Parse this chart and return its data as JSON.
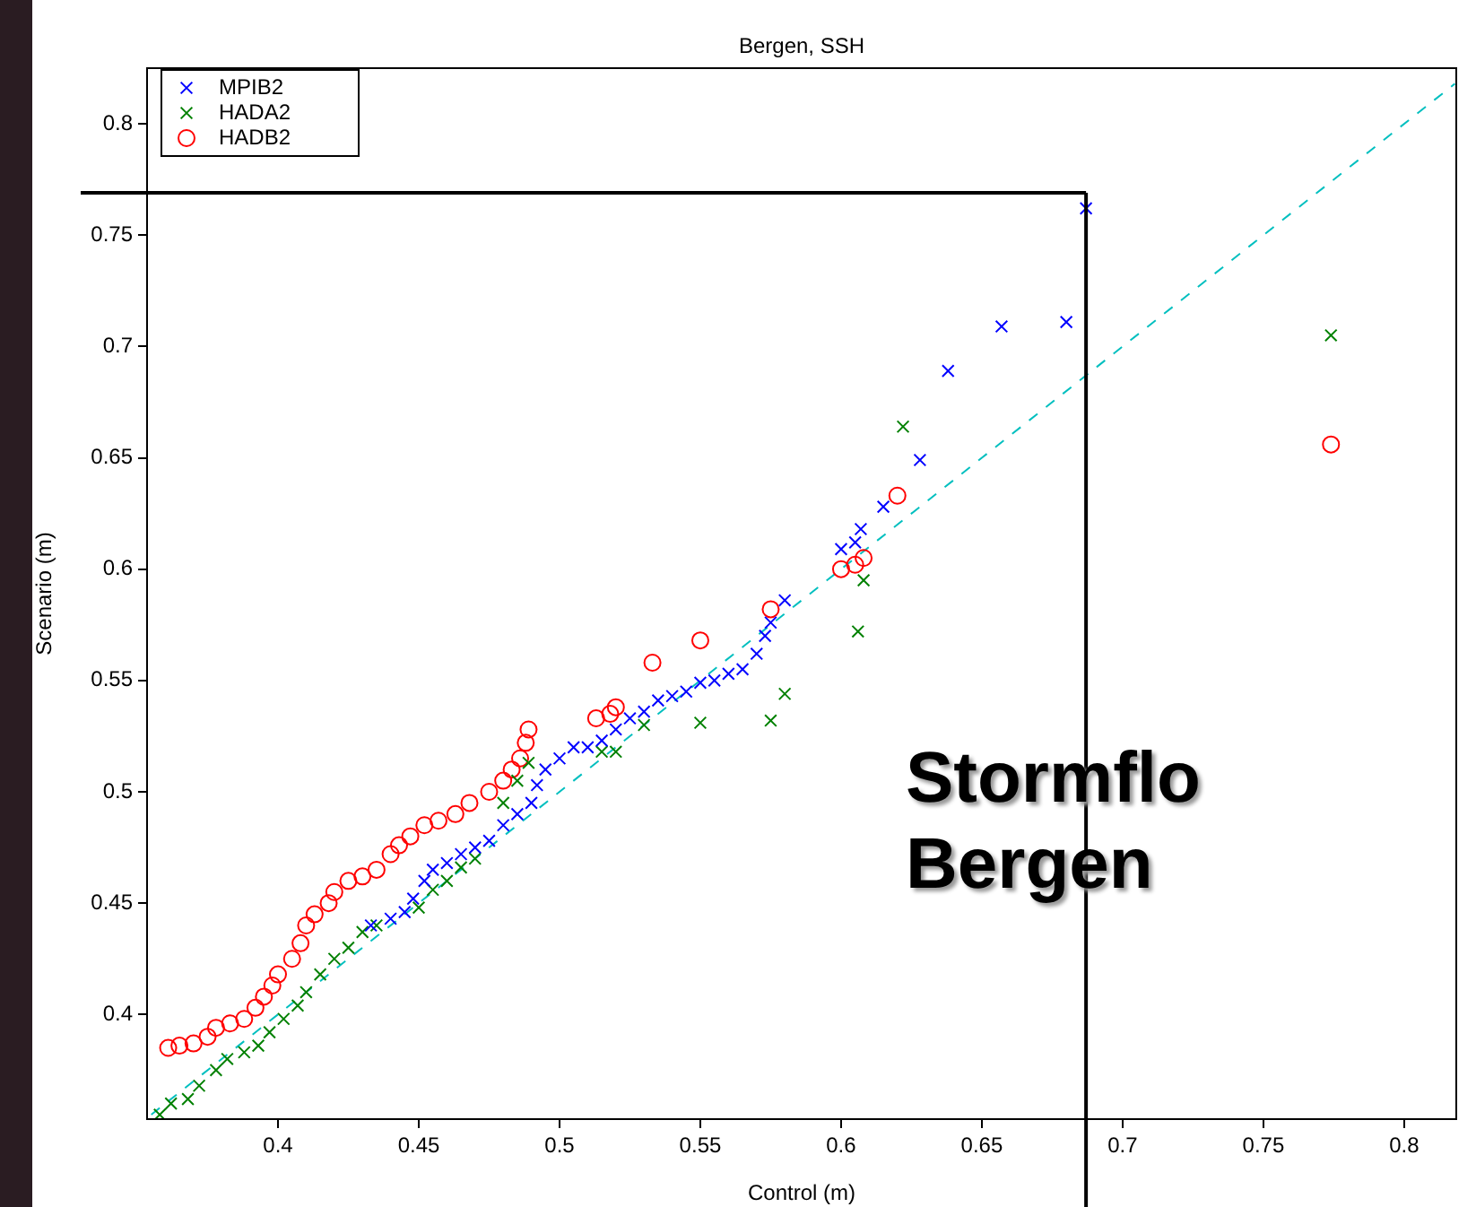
{
  "chart_data": {
    "type": "scatter",
    "title": "Bergen, SSH",
    "xlabel": "Control (m)",
    "ylabel": "Scenario (m)",
    "xlim": [
      0.3535,
      0.8185
    ],
    "ylim": [
      0.353,
      0.825
    ],
    "xticks": [
      0.4,
      0.45,
      0.5,
      0.55,
      0.6,
      0.65,
      0.7,
      0.75,
      0.8
    ],
    "yticks": [
      0.4,
      0.45,
      0.5,
      0.55,
      0.6,
      0.65,
      0.7,
      0.75,
      0.8
    ],
    "grid": false,
    "legend": "top left",
    "annotations": [
      "Stormflo Bergen"
    ],
    "ref_lines": [
      {
        "axis": "y",
        "value": 0.769,
        "color": "#000000"
      },
      {
        "axis": "x",
        "value": 0.687,
        "color": "#000000"
      }
    ],
    "series": [
      {
        "name": "MPIB2",
        "color": "#0000ff",
        "marker": "cross",
        "x": [
          0.433,
          0.44,
          0.445,
          0.448,
          0.452,
          0.455,
          0.46,
          0.465,
          0.47,
          0.475,
          0.48,
          0.485,
          0.49,
          0.492,
          0.495,
          0.5,
          0.505,
          0.51,
          0.515,
          0.52,
          0.525,
          0.53,
          0.535,
          0.54,
          0.545,
          0.55,
          0.555,
          0.56,
          0.565,
          0.57,
          0.573,
          0.575,
          0.58,
          0.6,
          0.605,
          0.607,
          0.615,
          0.628,
          0.638,
          0.657,
          0.68,
          0.687
        ],
        "values": [
          0.44,
          0.443,
          0.446,
          0.452,
          0.46,
          0.465,
          0.468,
          0.472,
          0.475,
          0.478,
          0.485,
          0.49,
          0.495,
          0.503,
          0.51,
          0.515,
          0.52,
          0.52,
          0.523,
          0.528,
          0.533,
          0.536,
          0.541,
          0.543,
          0.545,
          0.549,
          0.55,
          0.553,
          0.555,
          0.562,
          0.57,
          0.576,
          0.586,
          0.609,
          0.612,
          0.618,
          0.628,
          0.649,
          0.689,
          0.709,
          0.711,
          0.762
        ]
      },
      {
        "name": "HADA2",
        "color": "#008000",
        "marker": "cross",
        "x": [
          0.358,
          0.362,
          0.368,
          0.372,
          0.378,
          0.382,
          0.388,
          0.393,
          0.397,
          0.402,
          0.407,
          0.41,
          0.415,
          0.42,
          0.425,
          0.43,
          0.435,
          0.44,
          0.45,
          0.455,
          0.46,
          0.465,
          0.47,
          0.475,
          0.48,
          0.485,
          0.489,
          0.515,
          0.52,
          0.53,
          0.55,
          0.575,
          0.58,
          0.606,
          0.608,
          0.622,
          0.774
        ],
        "values": [
          0.355,
          0.36,
          0.362,
          0.368,
          0.375,
          0.38,
          0.383,
          0.386,
          0.392,
          0.398,
          0.404,
          0.41,
          0.418,
          0.425,
          0.43,
          0.437,
          0.44,
          null,
          0.448,
          0.456,
          0.46,
          0.466,
          0.47,
          null,
          0.495,
          0.505,
          0.513,
          0.518,
          0.518,
          0.53,
          0.531,
          0.532,
          0.544,
          0.572,
          0.595,
          0.664,
          0.705
        ]
      },
      {
        "name": "HADB2",
        "color": "#ff0000",
        "marker": "circle",
        "x": [
          0.361,
          0.365,
          0.37,
          0.375,
          0.378,
          0.383,
          0.388,
          0.392,
          0.395,
          0.398,
          0.4,
          0.405,
          0.408,
          0.41,
          0.413,
          0.418,
          0.42,
          0.425,
          0.43,
          0.435,
          0.44,
          0.443,
          0.447,
          0.452,
          0.457,
          0.463,
          0.468,
          0.475,
          0.48,
          0.483,
          0.486,
          0.488,
          0.489,
          0.513,
          0.518,
          0.52,
          0.533,
          0.55,
          0.575,
          0.6,
          0.605,
          0.608,
          0.62,
          0.774
        ],
        "values": [
          0.385,
          0.386,
          0.387,
          0.39,
          0.394,
          0.396,
          0.398,
          0.403,
          0.408,
          0.413,
          0.418,
          0.425,
          0.432,
          0.44,
          0.445,
          0.45,
          0.455,
          0.46,
          0.462,
          0.465,
          0.472,
          0.476,
          0.48,
          0.485,
          0.487,
          0.49,
          0.495,
          0.5,
          0.505,
          0.51,
          0.515,
          0.522,
          0.528,
          0.533,
          0.535,
          0.538,
          0.558,
          0.568,
          0.582,
          0.6,
          0.602,
          0.605,
          0.633,
          0.656
        ]
      },
      {
        "type": "line",
        "color": "#00bfbf",
        "marker": "none",
        "line_style": "dashed",
        "x": [
          0.355,
          0.818
        ],
        "values": [
          0.355,
          0.818
        ]
      }
    ]
  }
}
